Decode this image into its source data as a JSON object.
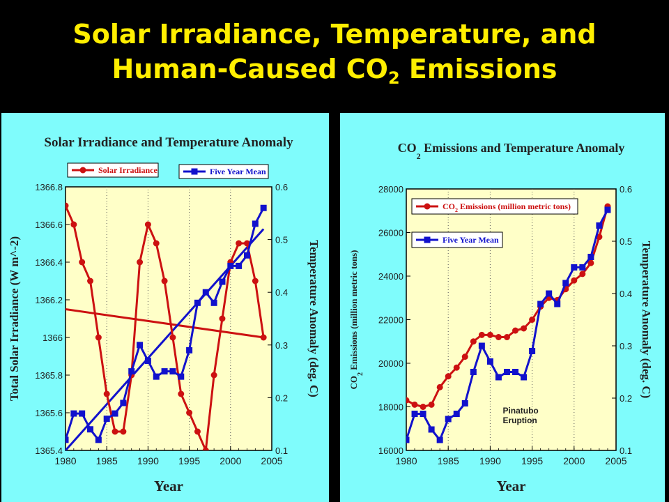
{
  "slide": {
    "title_line1": "Solar Irradiance, Temperature, and",
    "title_line2_before": "Human-Caused CO",
    "title_line2_sub": "2",
    "title_line2_after": " Emissions"
  },
  "colors": {
    "background": "#000000",
    "title": "#ffee00",
    "panel": "#7ffcfc",
    "plot": "#ffffc8",
    "red_series": "#cc1111",
    "blue_series": "#1111cc"
  },
  "chart_data": [
    {
      "type": "line",
      "title": "Solar Irradiance and Temperature Anomaly",
      "xlabel": "Year",
      "ylabel_left": "Total Solar Irradiance (W m^-2)",
      "ylabel_right": "Temperature Anomaly (deg. C)",
      "xlim": [
        1980,
        2005
      ],
      "ylim_left": [
        1365.4,
        1366.8
      ],
      "ylim_right": [
        0.1,
        0.6
      ],
      "x_ticks": [
        1980,
        1985,
        1990,
        1995,
        2000,
        2005
      ],
      "y_left_ticks": [
        1365.4,
        1365.6,
        1365.8,
        1366,
        1366.2,
        1366.4,
        1366.6,
        1366.8
      ],
      "y_left_tick_labels": [
        "1365.4",
        "1365.6",
        "1365.8",
        "1366",
        "1366.2",
        "1366.4",
        "1366.6",
        "1366.8"
      ],
      "y_right_ticks": [
        0.1,
        0.2,
        0.3,
        0.4,
        0.5,
        0.6
      ],
      "y_right_tick_labels": [
        "0.1",
        "0.2",
        "0.3",
        "0.4",
        "0.5",
        "0.6"
      ],
      "grid": "vertical dotted at 1985, 1990, 1995, 2000",
      "legend": [
        {
          "label": "Solar Irradiance",
          "color": "#cc1111",
          "marker": "circle"
        },
        {
          "label": "Five Year Mean",
          "color": "#1111cc",
          "marker": "square"
        }
      ],
      "series": [
        {
          "name": "Solar Irradiance",
          "axis": "left",
          "color": "#cc1111",
          "marker": "circle",
          "x": [
            1980,
            1981,
            1982,
            1983,
            1984,
            1985,
            1986,
            1987,
            1988,
            1989,
            1990,
            1991,
            1992,
            1993,
            1994,
            1995,
            1996,
            1997,
            1998,
            1999,
            2000,
            2001,
            2002,
            2003,
            2004
          ],
          "y": [
            1366.7,
            1366.6,
            1366.4,
            1366.3,
            1366.0,
            1365.7,
            1365.5,
            1365.5,
            1365.8,
            1366.4,
            1366.6,
            1366.5,
            1366.3,
            1366.0,
            1365.7,
            1365.6,
            1365.5,
            1365.4,
            1365.8,
            1366.1,
            1366.4,
            1366.5,
            1366.5,
            1366.3,
            1366.0
          ]
        },
        {
          "name": "Five Year Mean",
          "axis": "right",
          "color": "#1111cc",
          "marker": "square",
          "x": [
            1980,
            1981,
            1982,
            1983,
            1984,
            1985,
            1986,
            1987,
            1988,
            1989,
            1990,
            1991,
            1992,
            1993,
            1994,
            1995,
            1996,
            1997,
            1998,
            1999,
            2000,
            2001,
            2002,
            2003,
            2004
          ],
          "y": [
            0.12,
            0.17,
            0.17,
            0.14,
            0.12,
            0.16,
            0.17,
            0.19,
            0.25,
            0.3,
            0.27,
            0.24,
            0.25,
            0.25,
            0.24,
            0.29,
            0.38,
            0.4,
            0.38,
            0.42,
            0.45,
            0.45,
            0.47,
            0.53,
            0.56
          ]
        }
      ],
      "trend_lines": [
        {
          "of": "Solar Irradiance",
          "axis": "left",
          "color": "#cc1111",
          "x": [
            1980,
            2004
          ],
          "y": [
            1366.15,
            1366.0
          ]
        },
        {
          "of": "Five Year Mean",
          "axis": "right",
          "color": "#1111cc",
          "x": [
            1980,
            2004
          ],
          "y": [
            0.1,
            0.52
          ]
        }
      ]
    },
    {
      "type": "line",
      "title_before": "CO",
      "title_sub": "2",
      "title_after": " Emissions and Temperature Anomaly",
      "xlabel": "Year",
      "ylabel_left_before": "CO",
      "ylabel_left_sub": "2",
      "ylabel_left_after": " Emissions (million metric tons)",
      "ylabel_right": "Temperature Anomaly (deg. C)",
      "xlim": [
        1980,
        2005
      ],
      "ylim_left": [
        16000,
        28000
      ],
      "ylim_right": [
        0.1,
        0.6
      ],
      "x_ticks": [
        1980,
        1985,
        1990,
        1995,
        2000,
        2005
      ],
      "y_left_ticks": [
        16000,
        18000,
        20000,
        22000,
        24000,
        26000,
        28000
      ],
      "y_left_tick_labels": [
        "16000",
        "18000",
        "20000",
        "22000",
        "24000",
        "26000",
        "28000"
      ],
      "y_right_ticks": [
        0.1,
        0.2,
        0.3,
        0.4,
        0.5,
        0.6
      ],
      "y_right_tick_labels": [
        "0.1",
        "0.2",
        "0.3",
        "0.4",
        "0.5",
        "0.6"
      ],
      "grid": "vertical dotted at 1985, 1990, 1995, 2000",
      "legend": [
        {
          "label_before": "CO",
          "label_sub": "2",
          "label_after": " Emissions (million metric tons)",
          "color": "#cc1111",
          "marker": "circle"
        },
        {
          "label": "Five Year Mean",
          "color": "#1111cc",
          "marker": "square"
        }
      ],
      "annotations": [
        {
          "line1": "Pinatubo",
          "line2": "Eruption",
          "x": 1991,
          "y_left": 17700
        }
      ],
      "series": [
        {
          "name": "CO2 Emissions (million metric tons)",
          "axis": "left",
          "color": "#cc1111",
          "marker": "circle",
          "x": [
            1980,
            1981,
            1982,
            1983,
            1984,
            1985,
            1986,
            1987,
            1988,
            1989,
            1990,
            1991,
            1992,
            1993,
            1994,
            1995,
            1996,
            1997,
            1998,
            1999,
            2000,
            2001,
            2002,
            2003,
            2004
          ],
          "y": [
            18300,
            18100,
            18000,
            18100,
            18900,
            19400,
            19800,
            20300,
            21000,
            21300,
            21300,
            21200,
            21200,
            21500,
            21600,
            22000,
            22600,
            23000,
            22900,
            23400,
            23800,
            24100,
            24600,
            25800,
            27200
          ]
        },
        {
          "name": "Five Year Mean",
          "axis": "right",
          "color": "#1111cc",
          "marker": "square",
          "x": [
            1980,
            1981,
            1982,
            1983,
            1984,
            1985,
            1986,
            1987,
            1988,
            1989,
            1990,
            1991,
            1992,
            1993,
            1994,
            1995,
            1996,
            1997,
            1998,
            1999,
            2000,
            2001,
            2002,
            2003,
            2004
          ],
          "y": [
            0.12,
            0.17,
            0.17,
            0.14,
            0.12,
            0.16,
            0.17,
            0.19,
            0.25,
            0.3,
            0.27,
            0.24,
            0.25,
            0.25,
            0.24,
            0.29,
            0.38,
            0.4,
            0.38,
            0.42,
            0.45,
            0.45,
            0.47,
            0.53,
            0.56
          ]
        }
      ]
    }
  ]
}
